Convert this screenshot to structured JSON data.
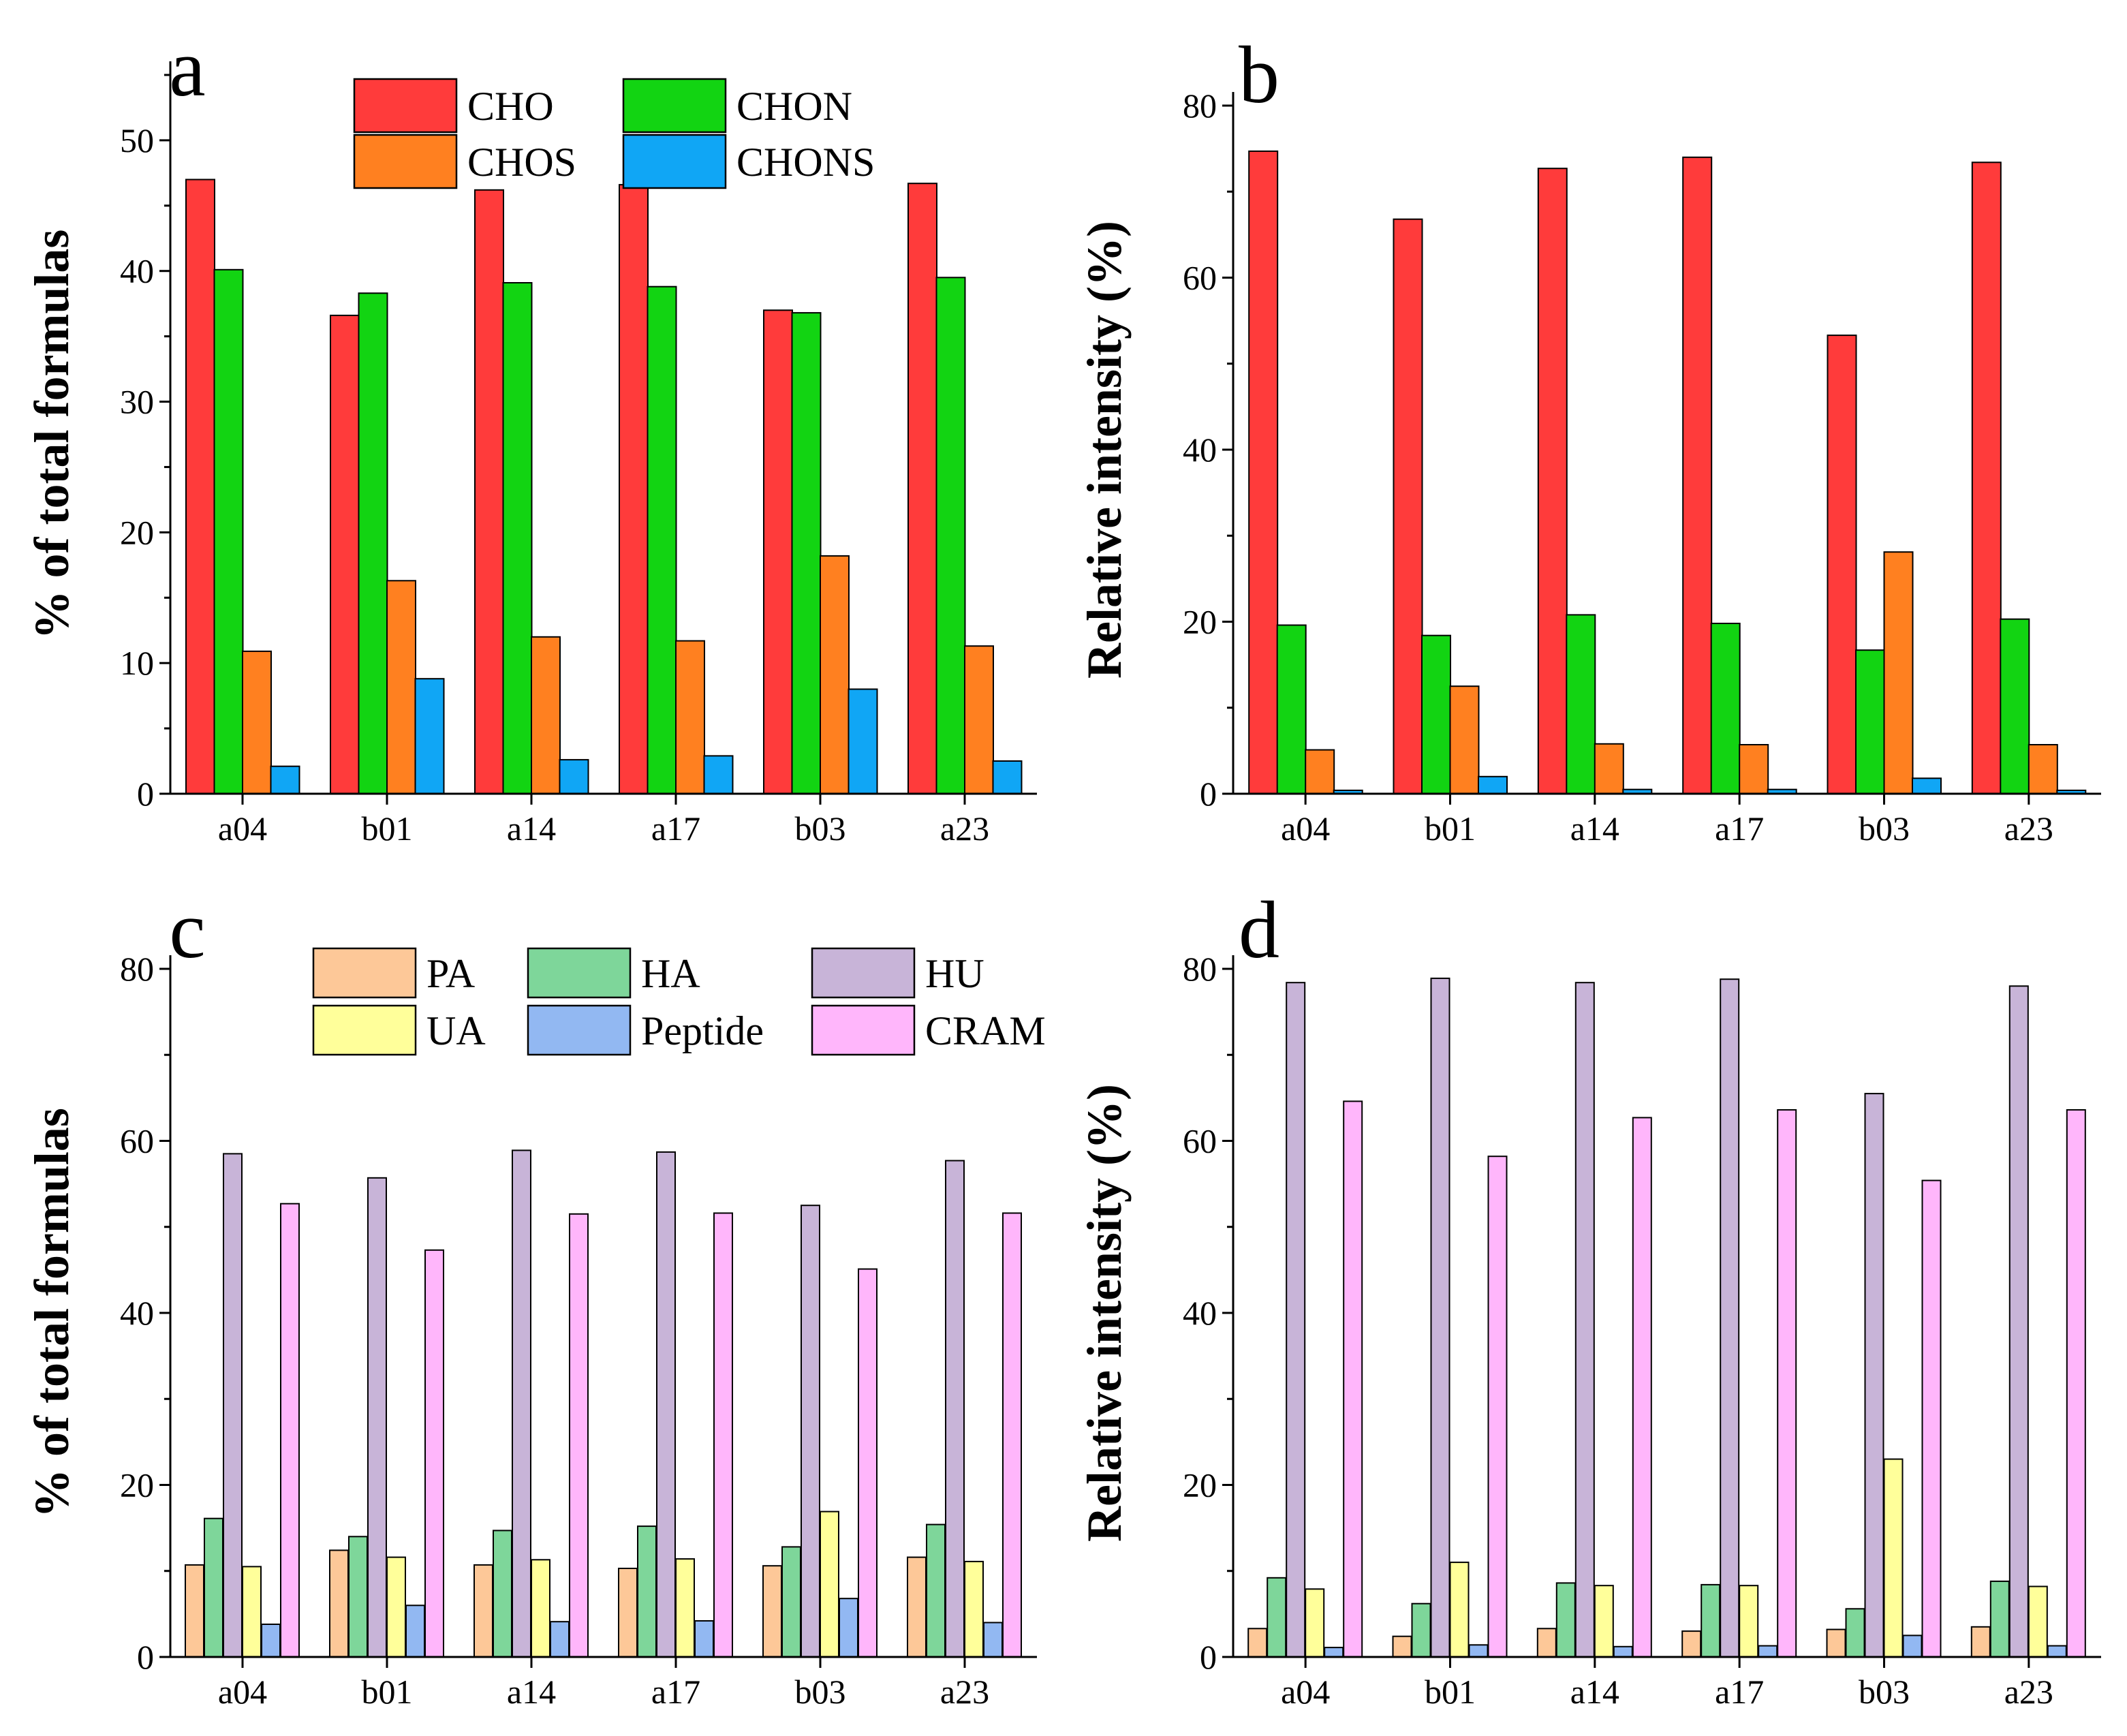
{
  "chart_data": [
    {
      "panel": "a",
      "type": "bar",
      "xlabel": "",
      "ylabel": "% of total formulas",
      "ylim": [
        0,
        55
      ],
      "yticks": [
        0,
        10,
        20,
        30,
        40,
        50
      ],
      "categories": [
        "a04",
        "b01",
        "a14",
        "a17",
        "b03",
        "a23"
      ],
      "legend": "top-center",
      "series": [
        {
          "name": "CHO",
          "color": "#ff3b3b",
          "values": [
            47.0,
            36.6,
            46.2,
            46.6,
            37.0,
            46.7
          ]
        },
        {
          "name": "CHON",
          "color": "#12d412",
          "values": [
            40.1,
            38.3,
            39.1,
            38.8,
            36.8,
            39.5
          ]
        },
        {
          "name": "CHOS",
          "color": "#ff8020",
          "values": [
            10.9,
            16.3,
            12.0,
            11.7,
            18.2,
            11.3
          ]
        },
        {
          "name": "CHONS",
          "color": "#10a6f5",
          "values": [
            2.1,
            8.8,
            2.6,
            2.9,
            8.0,
            2.5
          ]
        }
      ]
    },
    {
      "panel": "b",
      "type": "bar",
      "xlabel": "",
      "ylabel": "Relative intensity (%)",
      "ylim": [
        0,
        80
      ],
      "yticks": [
        0,
        20,
        40,
        60,
        80
      ],
      "categories": [
        "a04",
        "b01",
        "a14",
        "a17",
        "b03",
        "a23"
      ],
      "series": [
        {
          "name": "CHO",
          "color": "#ff3b3b",
          "values": [
            74.7,
            66.8,
            72.7,
            74.0,
            53.3,
            73.4
          ]
        },
        {
          "name": "CHON",
          "color": "#12d412",
          "values": [
            19.6,
            18.4,
            20.8,
            19.8,
            16.7,
            20.3
          ]
        },
        {
          "name": "CHOS",
          "color": "#ff8020",
          "values": [
            5.1,
            12.5,
            5.8,
            5.7,
            28.1,
            5.7
          ]
        },
        {
          "name": "CHONS",
          "color": "#10a6f5",
          "values": [
            0.4,
            2.0,
            0.5,
            0.5,
            1.8,
            0.4
          ]
        }
      ]
    },
    {
      "panel": "c",
      "type": "bar",
      "xlabel": "",
      "ylabel": "% of total formulas",
      "ylim": [
        0,
        80
      ],
      "yticks": [
        0,
        20,
        40,
        60,
        80
      ],
      "categories": [
        "a04",
        "b01",
        "a14",
        "a17",
        "b03",
        "a23"
      ],
      "legend": "top-center",
      "series": [
        {
          "name": "PA",
          "color": "#fdc898",
          "values": [
            10.7,
            12.4,
            10.7,
            10.3,
            10.6,
            11.6
          ]
        },
        {
          "name": "HA",
          "color": "#7ed69a",
          "values": [
            16.1,
            14.0,
            14.7,
            15.2,
            12.8,
            15.4
          ]
        },
        {
          "name": "HU",
          "color": "#c8b4d8",
          "values": [
            58.5,
            55.7,
            58.9,
            58.7,
            52.5,
            57.7
          ]
        },
        {
          "name": "UA",
          "color": "#ffff9a",
          "values": [
            10.5,
            11.6,
            11.3,
            11.4,
            16.9,
            11.1
          ]
        },
        {
          "name": "Peptide",
          "color": "#92b8f2",
          "values": [
            3.8,
            6.0,
            4.1,
            4.2,
            6.8,
            4.0
          ]
        },
        {
          "name": "CRAM",
          "color": "#ffb6fb",
          "values": [
            52.7,
            47.3,
            51.5,
            51.6,
            45.1,
            51.6
          ]
        }
      ]
    },
    {
      "panel": "d",
      "type": "bar",
      "xlabel": "",
      "ylabel": "Relative intensity (%)",
      "ylim": [
        0,
        80
      ],
      "yticks": [
        0,
        20,
        40,
        60,
        80
      ],
      "categories": [
        "a04",
        "b01",
        "a14",
        "a17",
        "b03",
        "a23"
      ],
      "series": [
        {
          "name": "PA",
          "color": "#fdc898",
          "values": [
            3.3,
            2.4,
            3.3,
            3.0,
            3.2,
            3.5
          ]
        },
        {
          "name": "HA",
          "color": "#7ed69a",
          "values": [
            9.2,
            6.2,
            8.6,
            8.4,
            5.6,
            8.8
          ]
        },
        {
          "name": "HU",
          "color": "#c8b4d8",
          "values": [
            78.4,
            78.9,
            78.4,
            78.8,
            65.5,
            78.0
          ]
        },
        {
          "name": "UA",
          "color": "#ffff9a",
          "values": [
            7.9,
            11.0,
            8.3,
            8.3,
            23.0,
            8.2
          ]
        },
        {
          "name": "Peptide",
          "color": "#92b8f2",
          "values": [
            1.1,
            1.4,
            1.2,
            1.3,
            2.5,
            1.3
          ]
        },
        {
          "name": "CRAM",
          "color": "#ffb6fb",
          "values": [
            64.6,
            58.2,
            62.7,
            63.6,
            55.4,
            63.6
          ]
        }
      ]
    }
  ]
}
